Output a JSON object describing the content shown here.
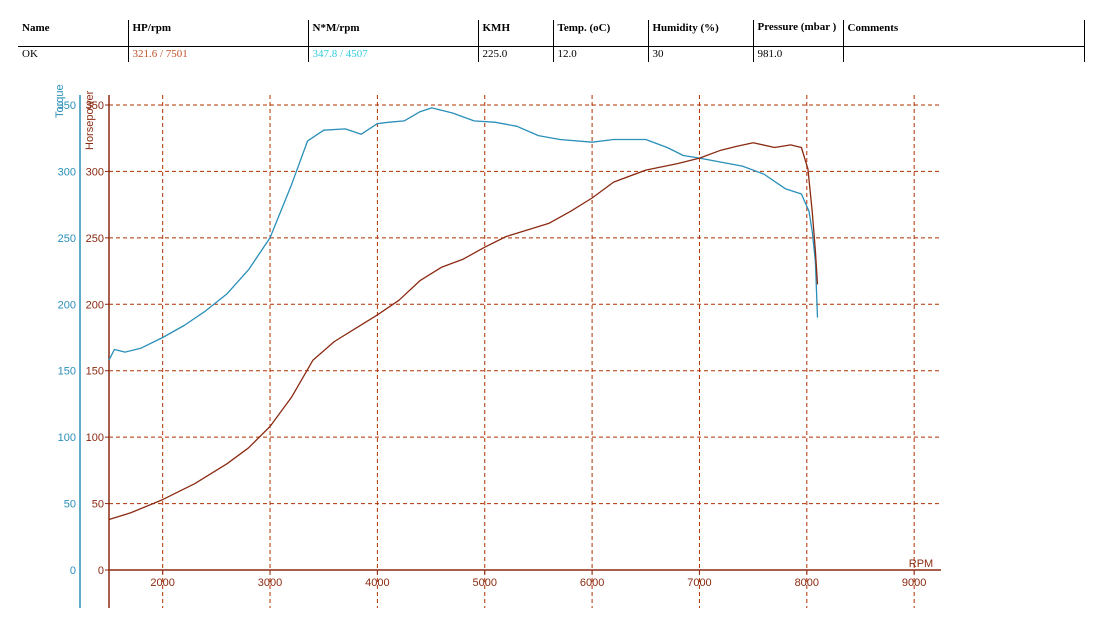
{
  "table": {
    "headers": [
      "Name",
      "HP/rpm",
      "N*M/rpm",
      "KMH",
      "Temp. (oC)",
      "Humidity (%)",
      "Pressure (mbar )",
      "Comments"
    ],
    "row": [
      "OK",
      "321.6 / 7501",
      "347.8 / 4507",
      "225.0",
      "12.0",
      "30",
      "981.0",
      ""
    ]
  },
  "colors": {
    "torque": "#2a8fb8",
    "horsepower": "#8b2a12",
    "grid": "#b03000",
    "background": "#ffffff"
  },
  "chart_data": {
    "type": "line",
    "title": "",
    "xlabel": "RPM",
    "ylabel_left": "Torque",
    "ylabel_right": "Horsepower",
    "xlim": [
      1500,
      9250
    ],
    "ylim": [
      0,
      350
    ],
    "x_ticks": [
      2000,
      3000,
      4000,
      5000,
      6000,
      7000,
      8000,
      9000
    ],
    "y_ticks": [
      0,
      50,
      100,
      150,
      200,
      250,
      300,
      350
    ],
    "grid": true,
    "series": [
      {
        "name": "Torque",
        "x": [
          1500,
          1550,
          1650,
          1800,
          2000,
          2200,
          2400,
          2600,
          2800,
          3000,
          3200,
          3350,
          3500,
          3700,
          3850,
          4000,
          4100,
          4250,
          4400,
          4507,
          4700,
          4900,
          5100,
          5300,
          5500,
          5700,
          6000,
          6200,
          6500,
          6700,
          6850,
          7000,
          7200,
          7400,
          7600,
          7800,
          7950,
          8020,
          8050,
          8080,
          8100
        ],
        "y": [
          158,
          166,
          164,
          167,
          175,
          184,
          195,
          208,
          226,
          250,
          290,
          323,
          331,
          332,
          328,
          336,
          337,
          338,
          345,
          347.8,
          344,
          338,
          337,
          334,
          327,
          324,
          322,
          324,
          324,
          318,
          312,
          310,
          307,
          304,
          298,
          287,
          283,
          270,
          255,
          232,
          190
        ]
      },
      {
        "name": "Horsepower",
        "x": [
          1500,
          1700,
          2000,
          2300,
          2600,
          2800,
          3000,
          3200,
          3400,
          3600,
          3800,
          4000,
          4200,
          4400,
          4600,
          4800,
          5000,
          5200,
          5400,
          5600,
          5800,
          6000,
          6200,
          6500,
          6800,
          7000,
          7200,
          7350,
          7501,
          7700,
          7850,
          7950,
          8010,
          8050,
          8080,
          8100
        ],
        "y": [
          38,
          43,
          53,
          65,
          80,
          92,
          108,
          130,
          158,
          172,
          182,
          192,
          203,
          218,
          228,
          234,
          243,
          251,
          256,
          261,
          270,
          280,
          292,
          301,
          306,
          310,
          316,
          319,
          321.6,
          318,
          320,
          318,
          302,
          270,
          240,
          215
        ]
      }
    ]
  }
}
